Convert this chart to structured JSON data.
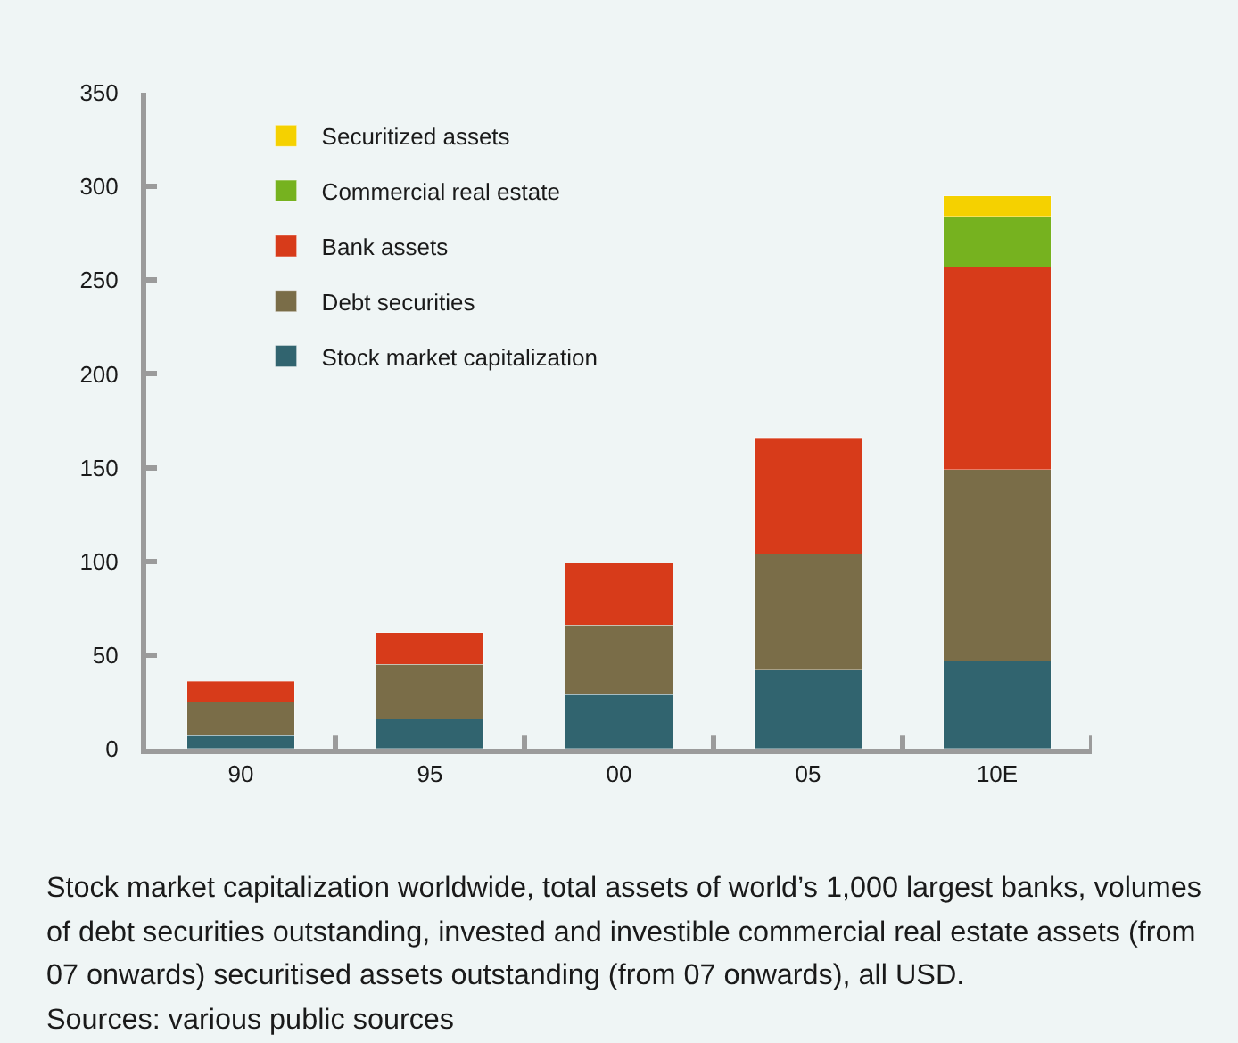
{
  "chart_data": {
    "type": "bar",
    "stacked": true,
    "categories": [
      "90",
      "95",
      "00",
      "05",
      "10E"
    ],
    "series": [
      {
        "name": "Stock market capitalization",
        "color": "#31646f",
        "values": [
          7,
          16,
          29,
          42,
          47
        ]
      },
      {
        "name": "Debt securities",
        "color": "#7a6d48",
        "values": [
          18,
          29,
          37,
          62,
          102
        ]
      },
      {
        "name": "Bank assets",
        "color": "#d73b1a",
        "values": [
          11,
          17,
          33,
          62,
          108
        ]
      },
      {
        "name": "Commercial real estate",
        "color": "#76b21f",
        "values": [
          null,
          null,
          null,
          null,
          27
        ]
      },
      {
        "name": "Securitized assets",
        "color": "#f5d100",
        "values": [
          null,
          null,
          null,
          null,
          11
        ]
      }
    ],
    "ylim": [
      0,
      350
    ],
    "yticks": [
      0,
      50,
      100,
      150,
      200,
      250,
      300,
      350
    ],
    "grid": false,
    "legend": "top left",
    "annotations": [
      "Stock market capitalization worldwide, total assets of world’s 1,000 largest banks, volumes of debt securities outstanding, invested and investible commercial real estate assets (from 07 onwards) securitised assets outstanding (from 07 onwards), all USD.",
      "Sources: various public sources"
    ]
  }
}
